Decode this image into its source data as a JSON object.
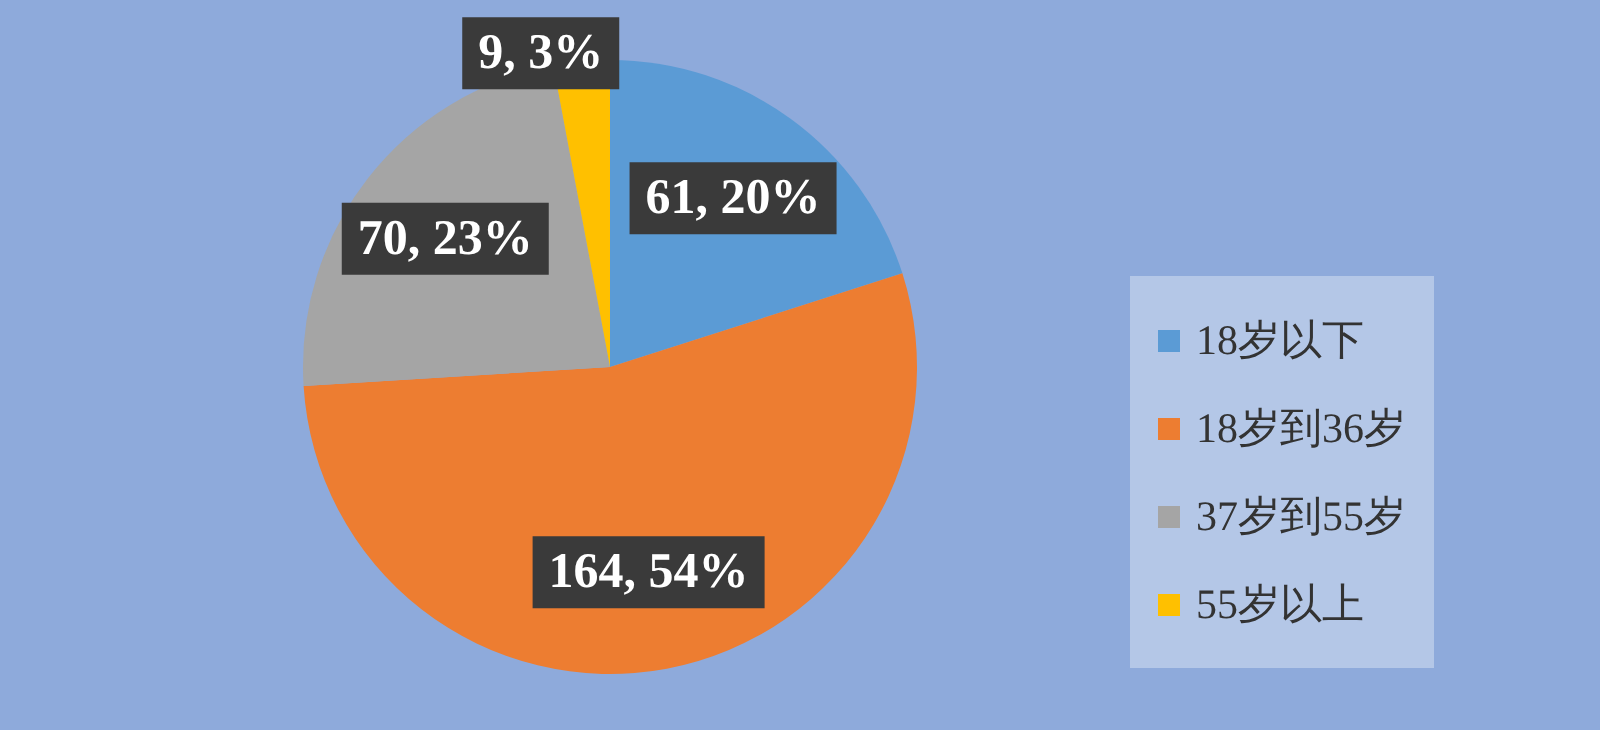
{
  "chart_data": {
    "type": "pie",
    "categories": [
      "18岁以下",
      "18岁到36岁",
      "37岁到55岁",
      "55岁以上"
    ],
    "values": [
      61,
      164,
      70,
      9
    ],
    "colors": [
      "#5b9bd5",
      "#ed7d31",
      "#a5a5a5",
      "#ffc000"
    ],
    "value_labels": [
      "61, 20%",
      "164, 54%",
      "70, 23%",
      "9, 3%"
    ],
    "legend": "right"
  }
}
